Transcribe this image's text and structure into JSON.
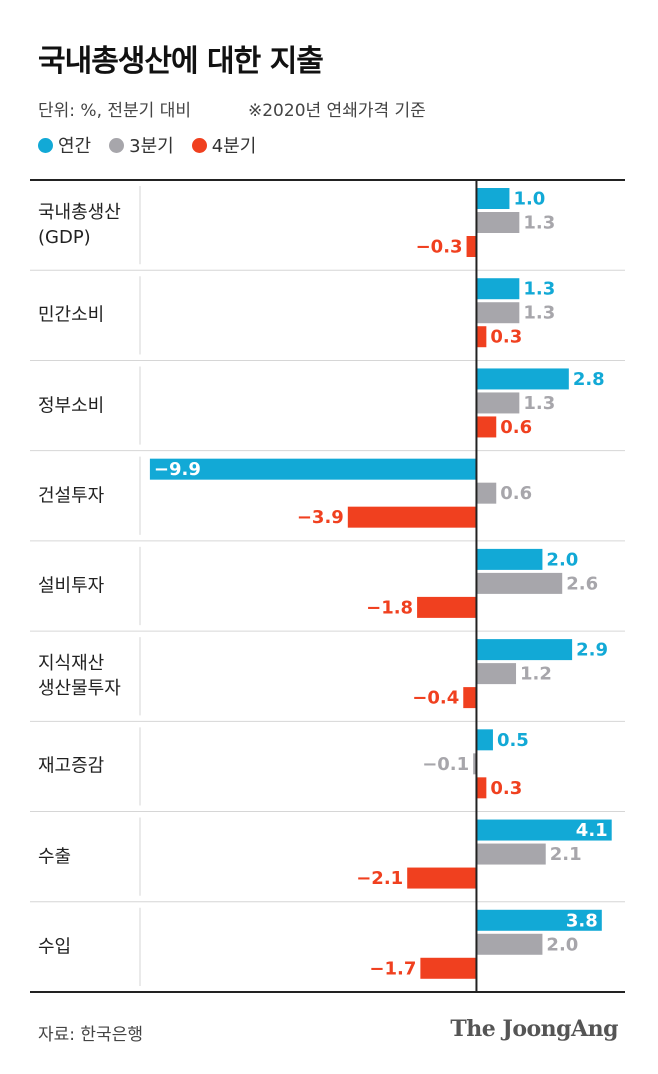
{
  "chart_data": {
    "type": "bar",
    "orientation": "horizontal",
    "title": "국내총생산에 대한 지출",
    "unit_note": "단위: %, 전분기 대비",
    "note": "※2020년 연쇄가격 기준",
    "source": "자료: 한국은행",
    "brand": "The JoongAng",
    "categories": [
      "국내총생산\n(GDP)",
      "민간소비",
      "정부소비",
      "건설투자",
      "설비투자",
      "지식재산\n생산물투자",
      "재고증감",
      "수출",
      "수입"
    ],
    "xlim": [
      -10.2,
      4.2
    ],
    "series": [
      {
        "name": "연간",
        "color": "#12a9d6",
        "values": [
          1.0,
          1.3,
          2.8,
          -9.9,
          2.0,
          2.9,
          0.5,
          4.1,
          3.8
        ],
        "value_labels": [
          "1.0",
          "1.3",
          "2.8",
          "−9.9",
          "2.0",
          "2.9",
          "0.5",
          "4.1",
          "3.8"
        ]
      },
      {
        "name": "3분기",
        "color": "#a7a6ab",
        "values": [
          1.3,
          1.3,
          1.3,
          0.6,
          2.6,
          1.2,
          -0.1,
          2.1,
          2.0
        ],
        "value_labels": [
          "1.3",
          "1.3",
          "1.3",
          "0.6",
          "2.6",
          "1.2",
          "−0.1",
          "2.1",
          "2.0"
        ]
      },
      {
        "name": "4분기",
        "color": "#f0401f",
        "values": [
          -0.3,
          0.3,
          0.6,
          -3.9,
          -1.8,
          -0.4,
          0.3,
          -2.1,
          -1.7
        ],
        "value_labels": [
          "−0.3",
          "0.3",
          "0.6",
          "−3.9",
          "−1.8",
          "−0.4",
          "0.3",
          "−2.1",
          "−1.7"
        ]
      }
    ]
  }
}
